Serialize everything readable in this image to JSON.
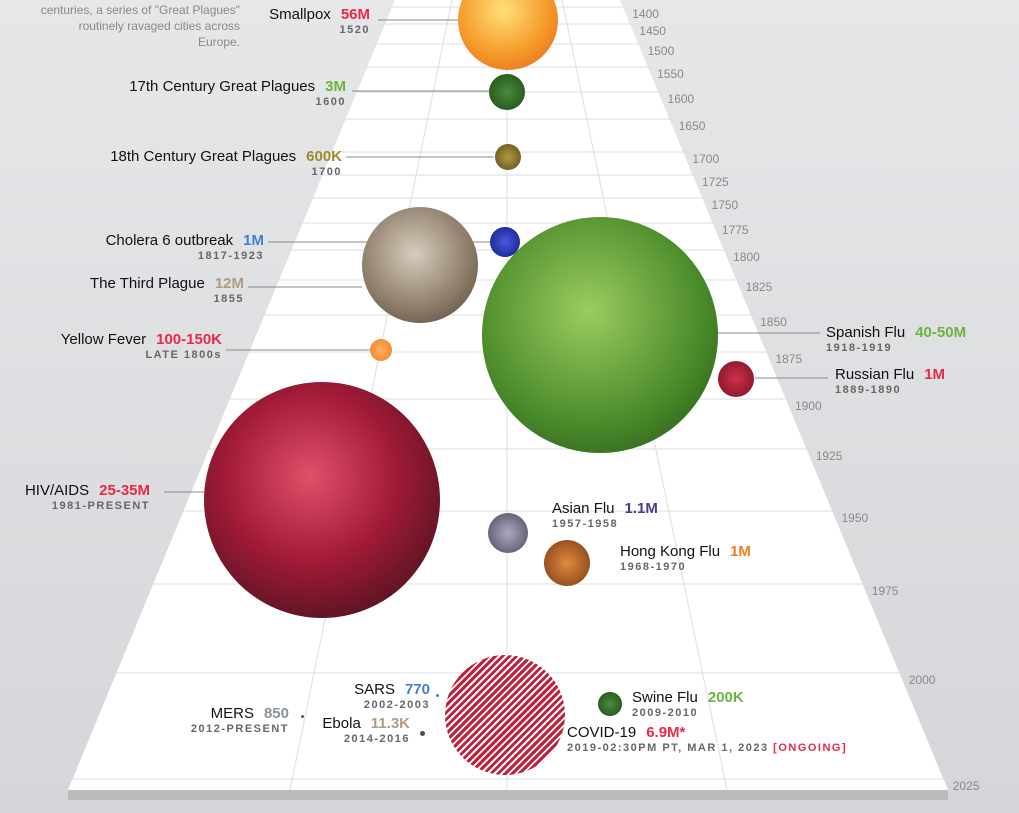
{
  "note": "centuries, a series of \"Great Plagues\" routinely ravaged cities across Europe.",
  "years": [
    "1400",
    "1450",
    "1500",
    "1550",
    "1600",
    "1650",
    "1700",
    "1725",
    "1750",
    "1775",
    "1800",
    "1825",
    "1850",
    "1875",
    "1900",
    "1925",
    "1950",
    "1975",
    "2000",
    "2025"
  ],
  "events": [
    {
      "name": "Smallpox",
      "value": "56M",
      "date": "1520",
      "color": "#e8294a"
    },
    {
      "name": "17th Century Great Plagues",
      "value": "3M",
      "date": "1600",
      "color": "#6db33f"
    },
    {
      "name": "18th Century Great Plagues",
      "value": "600K",
      "date": "1700",
      "color": "#a08a2e"
    },
    {
      "name": "Cholera 6 outbreak",
      "value": "1M",
      "date": "1817-1923",
      "color": "#3f7fd6"
    },
    {
      "name": "The Third Plague",
      "value": "12M",
      "date": "1855",
      "color": "#b09a80"
    },
    {
      "name": "Yellow Fever",
      "value": "100-150K",
      "date": "LATE 1800s",
      "color": "#e8294a"
    },
    {
      "name": "Spanish Flu",
      "value": "40-50M",
      "date": "1918-1919",
      "color": "#6db33f"
    },
    {
      "name": "Russian Flu",
      "value": "1M",
      "date": "1889-1890",
      "color": "#e8294a"
    },
    {
      "name": "HIV/AIDS",
      "value": "25-35M",
      "date": "1981-PRESENT",
      "color": "#e8294a"
    },
    {
      "name": "Asian Flu",
      "value": "1.1M",
      "date": "1957-1958",
      "color": "#4b3c8a"
    },
    {
      "name": "Hong Kong Flu",
      "value": "1M",
      "date": "1968-1970",
      "color": "#ef7d22"
    },
    {
      "name": "MERS",
      "value": "850",
      "date": "2012-PRESENT",
      "color": "#8a949c"
    },
    {
      "name": "SARS",
      "value": "770",
      "date": "2002-2003",
      "color": "#3f7fd6"
    },
    {
      "name": "Ebola",
      "value": "11.3K",
      "date": "2014-2016",
      "color": "#b09a80"
    },
    {
      "name": "Swine Flu",
      "value": "200K",
      "date": "2009-2010",
      "color": "#6db33f"
    },
    {
      "name": "COVID-19",
      "value": "6.9M*",
      "date": "2019-02:30PM PT, MAR 1, 2023",
      "status": "[ONGOING]",
      "color": "#e8294a"
    }
  ]
}
